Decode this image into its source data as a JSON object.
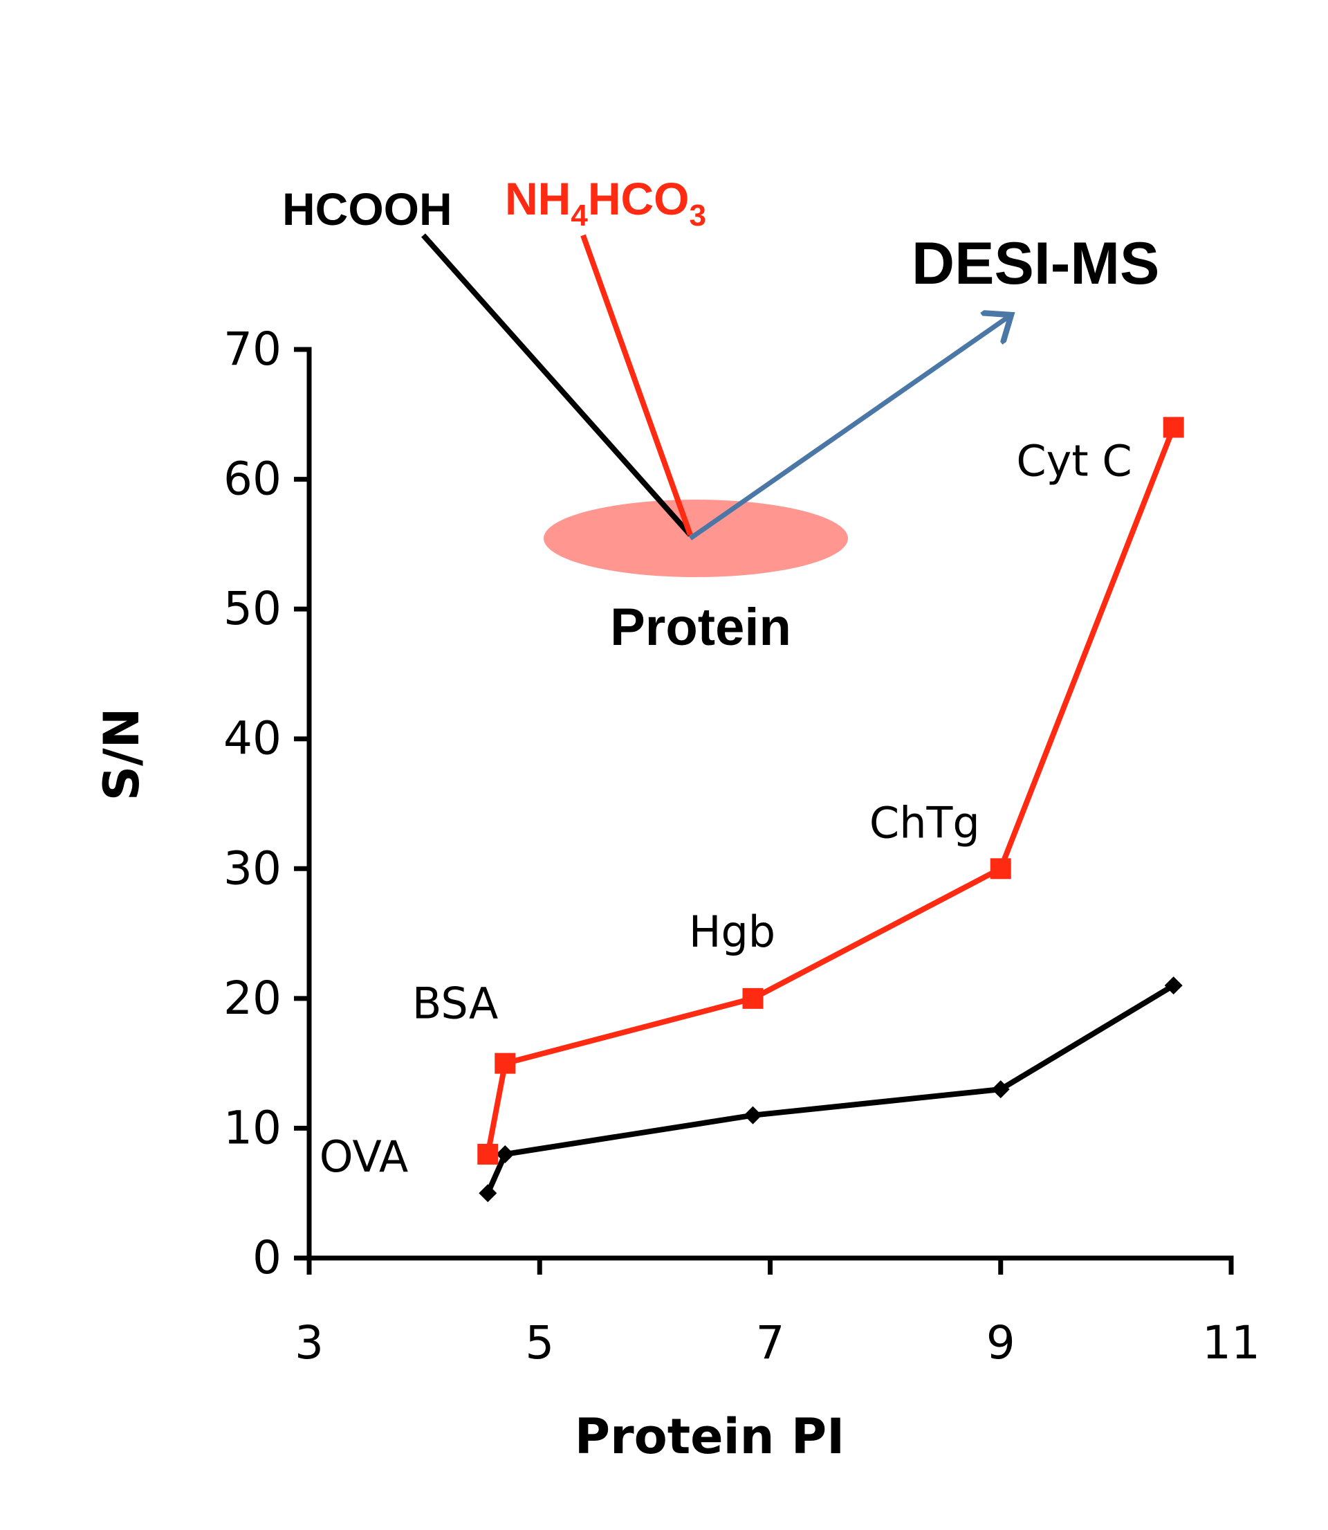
{
  "chart_data": {
    "type": "line",
    "xlabel": "Protein PI",
    "ylabel": "S/N",
    "xlim": [
      3,
      11
    ],
    "ylim": [
      0,
      70
    ],
    "xticks": [
      3,
      5,
      7,
      9,
      11
    ],
    "yticks": [
      0,
      10,
      20,
      30,
      40,
      50,
      60,
      70
    ],
    "grid": false,
    "series": [
      {
        "name": "NH4HCO3",
        "color": "#ff2a12",
        "marker": "square",
        "points": [
          {
            "x": 4.55,
            "y": 8
          },
          {
            "x": 4.7,
            "y": 15
          },
          {
            "x": 6.85,
            "y": 20
          },
          {
            "x": 9.0,
            "y": 30
          },
          {
            "x": 10.5,
            "y": 64
          }
        ]
      },
      {
        "name": "HCOOH",
        "color": "#000000",
        "marker": "diamond",
        "points": [
          {
            "x": 4.55,
            "y": 5
          },
          {
            "x": 4.7,
            "y": 8
          },
          {
            "x": 6.85,
            "y": 11
          },
          {
            "x": 9.0,
            "y": 13
          },
          {
            "x": 10.5,
            "y": 21
          }
        ]
      }
    ],
    "annotations": [
      {
        "text": "OVA",
        "x": 4.55,
        "y": 8
      },
      {
        "text": "BSA",
        "x": 4.7,
        "y": 15
      },
      {
        "text": "Hgb",
        "x": 6.85,
        "y": 20
      },
      {
        "text": "ChTg",
        "x": 9.0,
        "y": 30
      },
      {
        "text": "Cyt C",
        "x": 10.5,
        "y": 64
      }
    ]
  },
  "schematic": {
    "reagent_1": "HCOOH",
    "reagent_2_main": "NH",
    "reagent_2_sub1": "4",
    "reagent_2_mid": "HCO",
    "reagent_2_sub2": "3",
    "technique": "DESI-MS",
    "sample": "Protein",
    "reagent_1_color": "#000000",
    "reagent_2_color": "#ff2a12",
    "arrow_color": "#4a77a6",
    "sample_color": "#ff9790"
  }
}
